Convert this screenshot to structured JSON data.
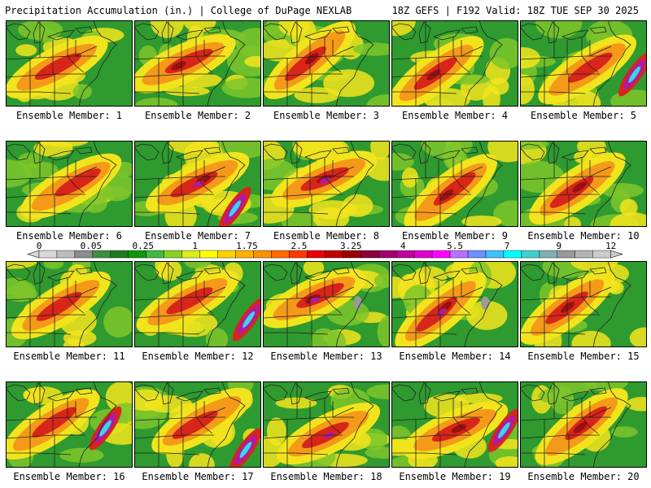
{
  "header": {
    "title": "Precipitation Accumulation (in.) | College of DuPage NEXLAB",
    "run_info": "18Z GEFS | F192 Valid: 18Z TUE SEP 30 2025"
  },
  "colorbar": {
    "tick_labels": [
      "0",
      "0.05",
      "0.25",
      "1",
      "1.75",
      "2.5",
      "3.25",
      "4",
      "5.5",
      "7",
      "9",
      "12"
    ],
    "colors": [
      "#d9d9d9",
      "#bdbdbd",
      "#8c8c8c",
      "#3f8f3f",
      "#1f7a1f",
      "#0c9a0c",
      "#42b842",
      "#86d41c",
      "#d9ee1a",
      "#ffff00",
      "#ffd200",
      "#ffb000",
      "#ff9000",
      "#ff6a00",
      "#ff3a00",
      "#e60000",
      "#bf0000",
      "#990000",
      "#8a003a",
      "#a0006a",
      "#c0009a",
      "#e000d0",
      "#ff00ff",
      "#b870ff",
      "#7090ff",
      "#40c0ff",
      "#00ffff",
      "#40d0d0",
      "#7fb0b0",
      "#999999",
      "#b3b3b3",
      "#cccccc"
    ]
  },
  "members": [
    {
      "label": "Ensemble Member: 1"
    },
    {
      "label": "Ensemble Member: 2"
    },
    {
      "label": "Ensemble Member: 3"
    },
    {
      "label": "Ensemble Member: 4"
    },
    {
      "label": "Ensemble Member: 5"
    },
    {
      "label": "Ensemble Member: 6"
    },
    {
      "label": "Ensemble Member: 7"
    },
    {
      "label": "Ensemble Member: 8"
    },
    {
      "label": "Ensemble Member: 9"
    },
    {
      "label": "Ensemble Member: 10"
    },
    {
      "label": "Ensemble Member: 11"
    },
    {
      "label": "Ensemble Member: 12"
    },
    {
      "label": "Ensemble Member: 13"
    },
    {
      "label": "Ensemble Member: 14"
    },
    {
      "label": "Ensemble Member: 15"
    },
    {
      "label": "Ensemble Member: 16"
    },
    {
      "label": "Ensemble Member: 17"
    },
    {
      "label": "Ensemble Member: 18"
    },
    {
      "label": "Ensemble Member: 19"
    },
    {
      "label": "Ensemble Member: 20"
    }
  ],
  "palette": {
    "base_green": "#2f9a2f",
    "mid_green": "#7cc62a",
    "yellow": "#f2e41c",
    "orange": "#f59a18",
    "red": "#d8251a",
    "maroon": "#9a1010",
    "magenta": "#b01aa0",
    "cyan": "#38d8e8",
    "gray": "#9a9a9a",
    "outline": "#222222"
  }
}
